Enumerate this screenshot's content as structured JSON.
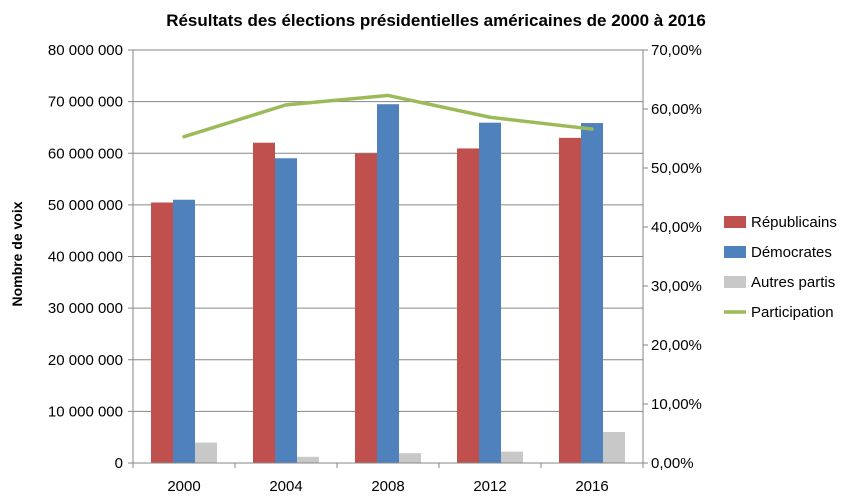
{
  "chart_data": {
    "type": "bar",
    "title": "Résultats des élections présidentielles américaines de 2000 à 2016",
    "ylabel": "Nombre de voix",
    "xlabel": "",
    "categories": [
      "2000",
      "2004",
      "2008",
      "2012",
      "2016"
    ],
    "ylim": [
      0,
      80000000
    ],
    "y_ticks": [
      "0",
      "10 000 000",
      "20 000 000",
      "30 000 000",
      "40 000 000",
      "50 000 000",
      "60 000 000",
      "70 000 000",
      "80 000 000"
    ],
    "y2lim": [
      0,
      0.7
    ],
    "y2_ticks": [
      "0,00%",
      "10,00%",
      "20,00%",
      "30,00%",
      "40,00%",
      "50,00%",
      "60,00%",
      "70,00%"
    ],
    "grid": true,
    "legend_position": "right",
    "series": [
      {
        "name": "Républicains",
        "type": "bar",
        "axis": "left",
        "color": "#C0504D",
        "values": [
          50460000,
          62040000,
          59950000,
          60930000,
          62980000
        ]
      },
      {
        "name": "Démocrates",
        "type": "bar",
        "axis": "left",
        "color": "#4F81BD",
        "values": [
          51000000,
          59030000,
          69500000,
          65920000,
          65850000
        ]
      },
      {
        "name": "Autres partis",
        "type": "bar",
        "axis": "left",
        "color": "#C8C8C8",
        "values": [
          3950000,
          1200000,
          1900000,
          2200000,
          6000000
        ]
      },
      {
        "name": "Participation",
        "type": "line",
        "axis": "right",
        "color": "#9BBB59",
        "values": [
          0.553,
          0.607,
          0.623,
          0.586,
          0.566
        ]
      }
    ]
  }
}
